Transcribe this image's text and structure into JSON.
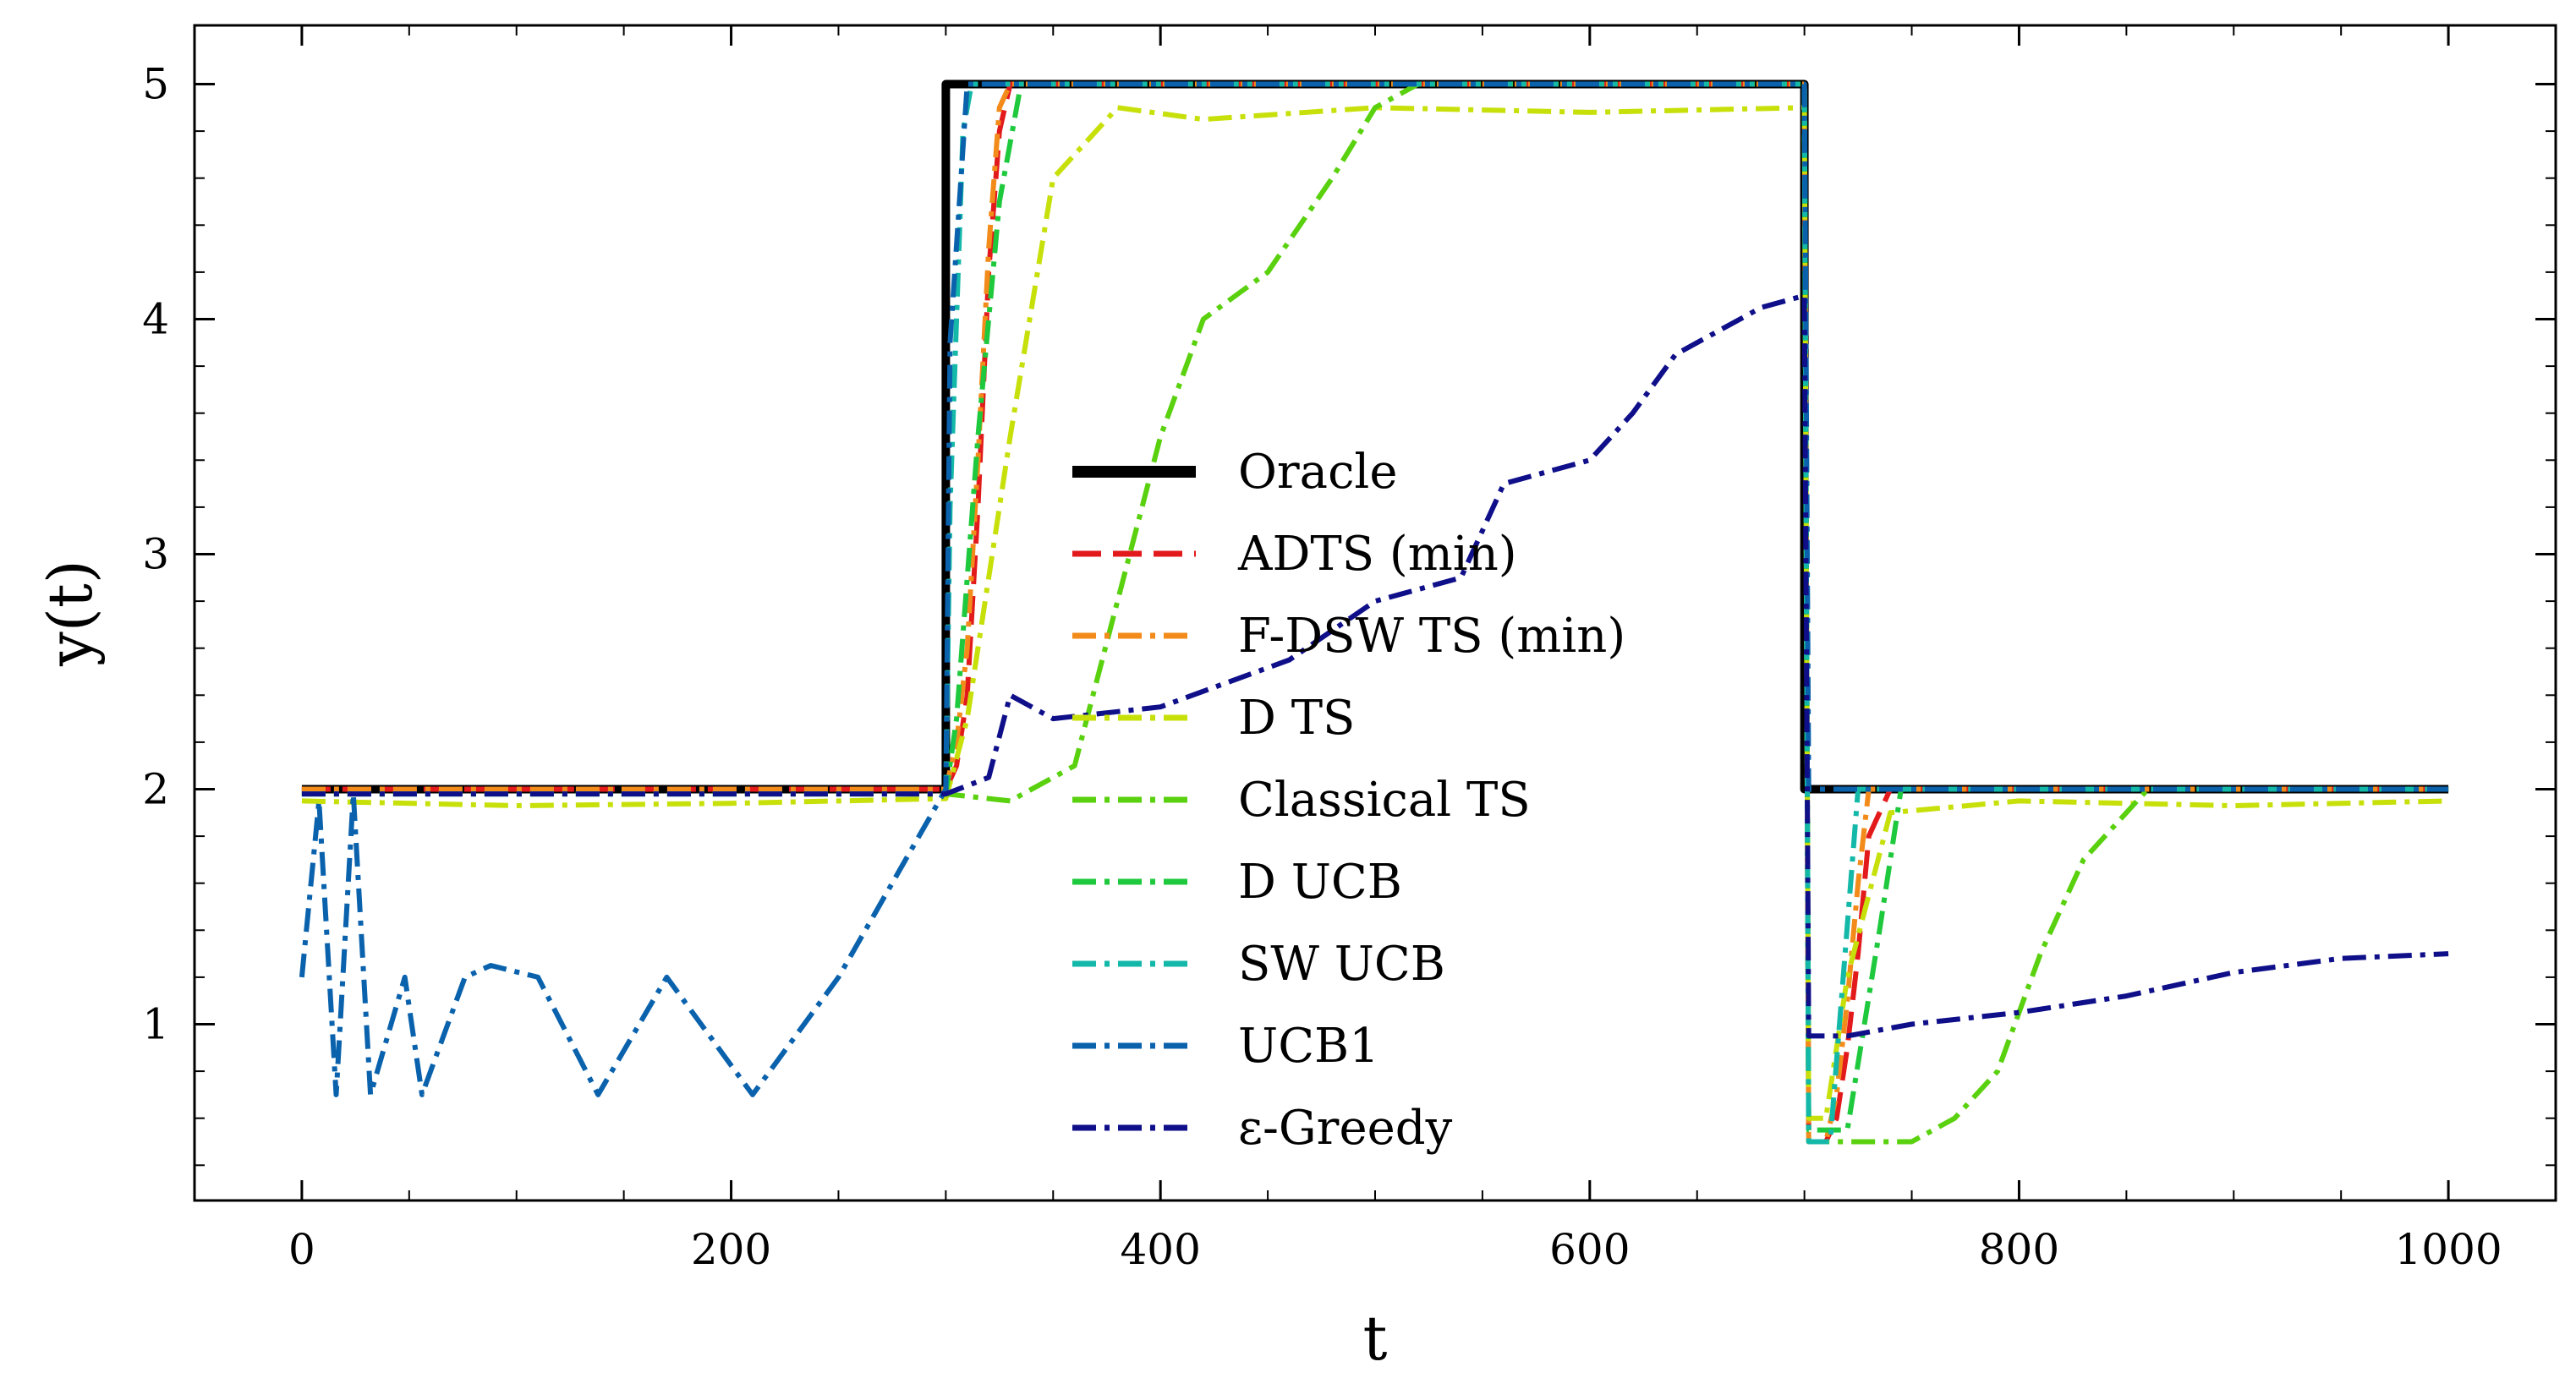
{
  "chart_data": {
    "type": "line",
    "title": "",
    "xlabel": "t",
    "ylabel": "y(t)",
    "xlim": [
      -50,
      1050
    ],
    "ylim": [
      0.25,
      5.25
    ],
    "xticks": [
      0,
      200,
      400,
      600,
      800,
      1000
    ],
    "yticks": [
      1,
      2,
      3,
      4,
      5
    ],
    "xtick_labels": [
      "0",
      "200",
      "400",
      "600",
      "800",
      "1000"
    ],
    "ytick_labels": [
      "1",
      "2",
      "3",
      "4",
      "5"
    ],
    "grid": false,
    "legend_position": "center",
    "series": [
      {
        "name": "Oracle",
        "color": "#000000",
        "dash": "solid",
        "x": [
          0,
          300,
          300,
          700,
          700,
          1000
        ],
        "y": [
          2,
          2,
          5,
          5,
          2,
          2
        ]
      },
      {
        "name": "ADTS (min)",
        "color": "#e31a1c",
        "dash": "dashed",
        "x": [
          0,
          300,
          305,
          310,
          315,
          320,
          325,
          330,
          340,
          700,
          702,
          710,
          715,
          720,
          725,
          730,
          740,
          1000
        ],
        "y": [
          2,
          2,
          2.1,
          2.4,
          3.2,
          4.2,
          4.8,
          5,
          5,
          5,
          0.5,
          0.5,
          0.6,
          0.9,
          1.3,
          1.8,
          2,
          2
        ]
      },
      {
        "name": "F-DSW TS (min)",
        "color": "#f28b1a",
        "dash": "dashdot",
        "x": [
          0,
          300,
          305,
          310,
          315,
          320,
          325,
          330,
          340,
          700,
          702,
          710,
          715,
          720,
          725,
          730,
          1000
        ],
        "y": [
          2,
          2,
          2.2,
          2.6,
          3.4,
          4.3,
          4.9,
          5,
          5,
          5,
          0.5,
          0.5,
          0.7,
          1.1,
          1.6,
          2,
          2
        ]
      },
      {
        "name": "D TS",
        "color": "#c7e00a",
        "dash": "dashdot",
        "x": [
          0,
          100,
          200,
          300,
          310,
          330,
          350,
          380,
          420,
          500,
          600,
          700,
          702,
          710,
          720,
          740,
          800,
          900,
          1000
        ],
        "y": [
          1.95,
          1.93,
          1.94,
          1.96,
          2.3,
          3.5,
          4.6,
          4.9,
          4.85,
          4.9,
          4.88,
          4.9,
          0.6,
          0.6,
          1.2,
          1.9,
          1.95,
          1.93,
          1.95
        ]
      },
      {
        "name": "Classical TS",
        "color": "#5ad10e",
        "dash": "dashdot",
        "x": [
          0,
          300,
          330,
          360,
          380,
          400,
          420,
          450,
          480,
          500,
          520,
          700,
          702,
          730,
          750,
          770,
          790,
          810,
          830,
          860,
          1000
        ],
        "y": [
          1.98,
          1.98,
          1.95,
          2.1,
          2.8,
          3.5,
          4.0,
          4.2,
          4.6,
          4.9,
          5,
          5,
          0.5,
          0.5,
          0.5,
          0.6,
          0.8,
          1.3,
          1.7,
          2,
          2
        ]
      },
      {
        "name": "D UCB",
        "color": "#1ec93d",
        "dash": "dashdot",
        "x": [
          0,
          300,
          305,
          315,
          325,
          335,
          700,
          702,
          720,
          735,
          745,
          1000
        ],
        "y": [
          1.98,
          1.98,
          2.3,
          3.5,
          4.5,
          5,
          5,
          0.55,
          0.55,
          1.4,
          2,
          2
        ]
      },
      {
        "name": "SW UCB",
        "color": "#14b8a8",
        "dash": "dashdot",
        "x": [
          0,
          300,
          302,
          308,
          312,
          700,
          702,
          712,
          725,
          1000
        ],
        "y": [
          1.98,
          1.98,
          3.2,
          4.8,
          5,
          5,
          0.5,
          0.5,
          2,
          2
        ]
      },
      {
        "name": "UCB1",
        "color": "#0a62ad",
        "dash": "dashdot",
        "x": [
          0,
          8,
          16,
          24,
          32,
          48,
          56,
          76,
          88,
          110,
          138,
          170,
          210,
          250,
          300,
          302,
          310,
          700,
          702,
          1000
        ],
        "y": [
          1.2,
          1.95,
          0.7,
          1.98,
          0.7,
          1.2,
          0.7,
          1.2,
          1.25,
          1.2,
          0.7,
          1.2,
          0.7,
          1.2,
          2,
          3.9,
          5,
          5,
          2,
          2
        ]
      },
      {
        "name": "ε-Greedy",
        "color": "#0f0f8a",
        "dash": "dashdot",
        "x": [
          0,
          300,
          320,
          330,
          350,
          400,
          430,
          460,
          500,
          540,
          560,
          580,
          600,
          620,
          640,
          660,
          680,
          700,
          702,
          720,
          750,
          800,
          850,
          900,
          950,
          1000
        ],
        "y": [
          1.98,
          1.98,
          2.05,
          2.4,
          2.3,
          2.35,
          2.45,
          2.55,
          2.8,
          2.9,
          3.3,
          3.35,
          3.4,
          3.6,
          3.85,
          3.95,
          4.05,
          4.1,
          0.95,
          0.95,
          1.0,
          1.05,
          1.12,
          1.22,
          1.28,
          1.3
        ]
      }
    ]
  }
}
